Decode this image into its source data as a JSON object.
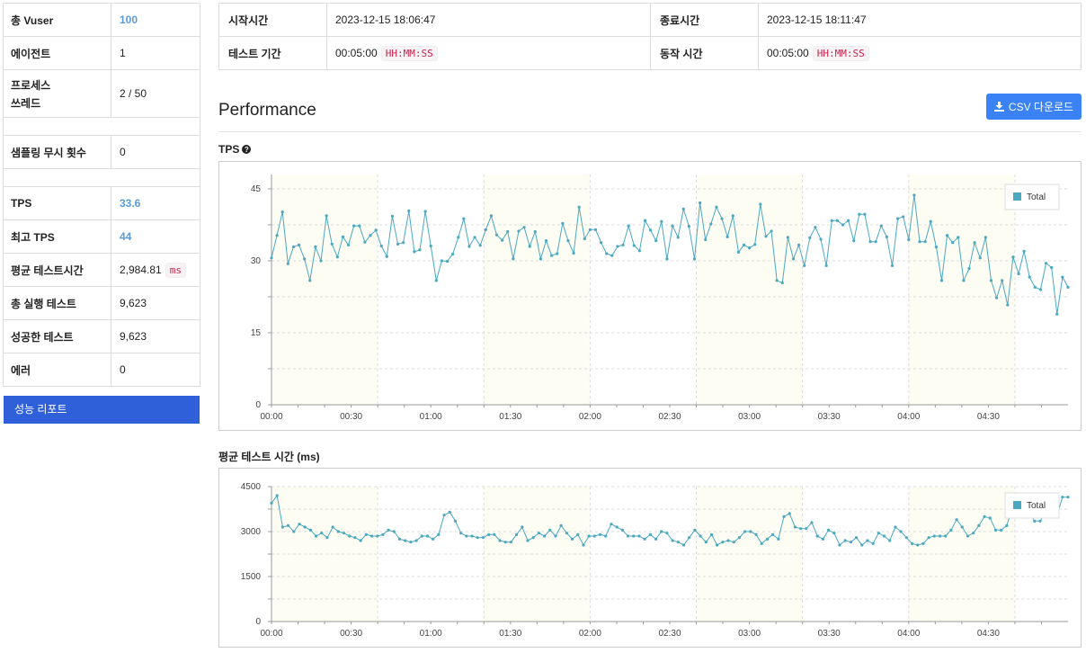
{
  "summary": {
    "rows": [
      {
        "label": "총 Vuser",
        "value": "100",
        "accent": true
      },
      {
        "label": "에이전트",
        "value": "1"
      },
      {
        "label": "프로세스",
        "label2": "쓰레드",
        "value": "2 / 50",
        "tall": true
      },
      {
        "spacer": true
      },
      {
        "label": "샘플링 무시 횟수",
        "value": "0"
      },
      {
        "spacer": true
      },
      {
        "label": "TPS",
        "value": "33.6",
        "accent": true
      },
      {
        "label": "최고 TPS",
        "value": "44",
        "accent": true
      },
      {
        "label": "평균 테스트시간",
        "value": "2,984.81",
        "unit": "ms"
      },
      {
        "label": "총 실행 테스트",
        "value": "9,623"
      },
      {
        "label": "성공한 테스트",
        "value": "9,623"
      },
      {
        "label": "에러",
        "value": "0"
      }
    ],
    "report_button": "성능 리포트"
  },
  "times": {
    "start_label": "시작시간",
    "start_value": "2023-12-15 18:06:47",
    "end_label": "종료시간",
    "end_value": "2023-12-15 18:11:47",
    "duration_label": "테스트 기간",
    "duration_value": "00:05:00",
    "duration_unit": "HH:MM:SS",
    "run_label": "동작 시간",
    "run_value": "00:05:00",
    "run_unit": "HH:MM:SS"
  },
  "performance": {
    "title": "Performance",
    "csv_button": "CSV 다운로드"
  },
  "colors": {
    "line": "#4aa8c0",
    "plot_bg": "#fdfdf4",
    "button_blue": "#3b82f6",
    "report_blue": "#3060d9",
    "accent_text": "#5b9bd5"
  },
  "chart_data": [
    {
      "type": "line",
      "title": "TPS",
      "legend": "Total",
      "legend_position": "top-right",
      "ylim": [
        0,
        48
      ],
      "yticks": [
        0,
        15,
        30,
        45
      ],
      "x_tick_labels": [
        "00:00",
        "00:30",
        "01:00",
        "01:30",
        "02:00",
        "02:30",
        "03:00",
        "03:30",
        "04:00",
        "04:30"
      ],
      "x_seconds_range": [
        0,
        290
      ],
      "series": [
        {
          "name": "Total",
          "values": [
            30.6,
            35.3,
            40.2,
            29.4,
            32.9,
            33.3,
            30.4,
            25.9,
            32.9,
            30.0,
            39.4,
            33.5,
            30.8,
            35.0,
            33.3,
            37.3,
            37.3,
            33.9,
            35.3,
            36.4,
            33.1,
            30.9,
            39.3,
            33.5,
            33.8,
            40.4,
            31.9,
            32.3,
            40.3,
            33.1,
            25.9,
            30.0,
            29.9,
            31.4,
            34.9,
            38.8,
            33.0,
            34.9,
            33.2,
            36.5,
            39.4,
            35.4,
            34.3,
            36.1,
            30.4,
            36.2,
            37.0,
            33.0,
            36.1,
            30.4,
            34.2,
            31.1,
            31.5,
            37.8,
            34.2,
            31.6,
            41.2,
            34.6,
            36.5,
            36.5,
            33.8,
            31.5,
            31.1,
            33.0,
            33.3,
            37.3,
            33.2,
            32.1,
            38.4,
            36.4,
            34.2,
            38.2,
            30.4,
            37.3,
            34.9,
            40.8,
            37.2,
            30.4,
            42.1,
            34.4,
            37.7,
            41.2,
            38.8,
            35.0,
            39.4,
            31.8,
            33.3,
            32.7,
            33.4,
            41.8,
            35.1,
            36.2,
            25.9,
            25.4,
            34.9,
            30.4,
            33.3,
            29.0,
            34.8,
            37.0,
            34.5,
            29.0,
            38.4,
            38.4,
            37.5,
            38.4,
            34.2,
            39.7,
            39.7,
            34.0,
            34.0,
            37.3,
            35.0,
            29.0,
            38.8,
            39.2,
            34.4,
            43.7,
            34.0,
            34.0,
            38.2,
            32.9,
            25.9,
            35.3,
            33.8,
            34.9,
            25.9,
            28.4,
            33.8,
            30.6,
            34.9,
            25.9,
            22.3,
            25.9,
            20.8,
            30.8,
            27.3,
            32.0,
            26.6,
            24.5,
            24.0,
            29.5,
            28.6,
            18.9,
            26.6,
            24.5
          ]
        }
      ]
    },
    {
      "type": "line",
      "title": "평균 테스트 시간 (ms)",
      "legend": "Total",
      "legend_position": "top-right",
      "ylim": [
        0,
        4500
      ],
      "yticks": [
        0,
        1500,
        3000,
        4500
      ],
      "x_tick_labels": [
        "00:00",
        "00:30",
        "01:00",
        "01:30",
        "02:00",
        "02:30",
        "03:00",
        "03:30",
        "04:00",
        "04:30"
      ],
      "x_seconds_range": [
        0,
        290
      ],
      "series": [
        {
          "name": "Total",
          "values": [
            3950,
            4200,
            3150,
            3200,
            3000,
            3250,
            3150,
            3050,
            2850,
            2950,
            2800,
            3150,
            3000,
            2950,
            2850,
            2800,
            2700,
            2900,
            2850,
            2850,
            2900,
            3050,
            3000,
            2750,
            2700,
            2650,
            2700,
            2850,
            2850,
            2750,
            2900,
            3550,
            3650,
            3350,
            2950,
            2850,
            2850,
            2800,
            2800,
            2900,
            2900,
            2700,
            2650,
            2650,
            2900,
            3150,
            2700,
            2800,
            2950,
            2850,
            3050,
            2850,
            3200,
            2950,
            2750,
            2900,
            2550,
            2850,
            2850,
            2900,
            2850,
            3250,
            3150,
            3050,
            2850,
            2850,
            2850,
            2750,
            2900,
            2750,
            3000,
            2950,
            2700,
            2650,
            2550,
            2800,
            3050,
            2850,
            2650,
            2900,
            2550,
            2650,
            2700,
            2650,
            2800,
            3000,
            3000,
            2900,
            2600,
            2750,
            2900,
            2750,
            3500,
            3600,
            3150,
            3100,
            3100,
            3300,
            2850,
            2750,
            3050,
            2950,
            2550,
            2700,
            2650,
            2800,
            2550,
            2700,
            2600,
            2950,
            2850,
            2700,
            3150,
            3000,
            2800,
            2600,
            2550,
            2600,
            2800,
            2850,
            2850,
            2850,
            3050,
            3400,
            3150,
            2850,
            2950,
            3200,
            3500,
            3450,
            3050,
            3050,
            3200,
            3750,
            4200,
            4100,
            3700,
            3350,
            3350,
            3650,
            3650,
            3500,
            4150,
            4150
          ]
        }
      ]
    }
  ]
}
